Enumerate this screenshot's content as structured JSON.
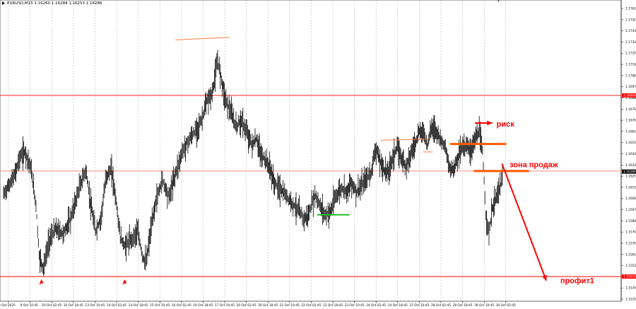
{
  "chart_data": {
    "type": "candlestick",
    "header": {
      "symbol_timeframe": "EURUSD,M15",
      "ohlc": "1.16260 1.16288 1.16253 1.16286"
    },
    "y_ticks": [
      "1.1761",
      "1.1752",
      "1.1743",
      "1.1734",
      "1.1725",
      "1.1716",
      "1.1706",
      "1.1697",
      "1.1688",
      "1.1679",
      "1.1670",
      "1.1661",
      "1.1652",
      "1.1643",
      "1.1634",
      "1.1625",
      "1.1615",
      "1.1606",
      "1.1597",
      "1.1588",
      "1.1579",
      "1.1570",
      "1.1561",
      "1.1552",
      "1.1543",
      "1.1534",
      "1.1525"
    ],
    "ylim": [
      1.1525,
      1.1761
    ],
    "x_ticks": [
      "8 Oct 2025",
      "9 Oct 10:45",
      "10 Oct 02:45",
      "10 Oct 18:45",
      "13 Oct 10:45",
      "14 Oct 02:45",
      "14 Oct 18:45",
      "15 Oct 10:45",
      "16 Oct 02:45",
      "16 Oct 18:45",
      "17 Oct 10:45",
      "20 Oct 02:45",
      "20 Oct 18:45",
      "21 Oct 10:45",
      "22 Oct 02:45",
      "22 Oct 18:45",
      "23 Oct 10:45",
      "24 Oct 02:45",
      "24 Oct 18:45",
      "27 Oct 10:45",
      "28 Oct 02:45",
      "28 Oct 18:45",
      "29 Oct 10:45",
      "30 Oct 02:45"
    ],
    "price_tags": [
      {
        "label": "1.16904",
        "value": 1.16904,
        "color": "#ff0000"
      },
      {
        "label": "1.16286",
        "value": 1.16286,
        "color": "#000000"
      },
      {
        "label": "1.15433",
        "value": 1.15433,
        "color": "#ff0000"
      }
    ],
    "horizontal_levels": [
      {
        "value": 1.16904,
        "color": "#ff0000"
      },
      {
        "value": 1.1629,
        "color": "#ff8a8a"
      },
      {
        "value": 1.15433,
        "color": "#ff0000"
      }
    ],
    "path_points": [
      [
        0,
        1.161
      ],
      [
        1,
        1.1625
      ],
      [
        1.5,
        1.164
      ],
      [
        2,
        1.1645
      ],
      [
        2.5,
        1.1632
      ],
      [
        3,
        1.1602
      ],
      [
        3.3,
        1.156
      ],
      [
        3.7,
        1.155
      ],
      [
        4.2,
        1.1572
      ],
      [
        4.8,
        1.1582
      ],
      [
        5.5,
        1.1578
      ],
      [
        6.2,
        1.159
      ],
      [
        7,
        1.1615
      ],
      [
        7.6,
        1.163
      ],
      [
        8,
        1.1605
      ],
      [
        8.5,
        1.158
      ],
      [
        9,
        1.159
      ],
      [
        9.5,
        1.1625
      ],
      [
        10,
        1.163
      ],
      [
        10.4,
        1.1605
      ],
      [
        10.8,
        1.1575
      ],
      [
        11.2,
        1.1568
      ],
      [
        11.8,
        1.1573
      ],
      [
        12.4,
        1.158
      ],
      [
        12.9,
        1.1558
      ],
      [
        13.2,
        1.1555
      ],
      [
        13.6,
        1.158
      ],
      [
        14.1,
        1.1605
      ],
      [
        14.7,
        1.1622
      ],
      [
        15.3,
        1.1608
      ],
      [
        16,
        1.163
      ],
      [
        16.6,
        1.1646
      ],
      [
        17.2,
        1.1655
      ],
      [
        17.8,
        1.1662
      ],
      [
        18.3,
        1.167
      ],
      [
        18.8,
        1.1685
      ],
      [
        19.3,
        1.1692
      ],
      [
        19.8,
        1.1718
      ],
      [
        20.1,
        1.1707
      ],
      [
        20.5,
        1.1688
      ],
      [
        21,
        1.1677
      ],
      [
        21.5,
        1.1665
      ],
      [
        22,
        1.167
      ],
      [
        22.5,
        1.166
      ],
      [
        23,
        1.165
      ],
      [
        23.4,
        1.1655
      ],
      [
        23.8,
        1.1642
      ],
      [
        24.2,
        1.1638
      ],
      [
        24.6,
        1.1632
      ],
      [
        25,
        1.162
      ],
      [
        25.5,
        1.1615
      ],
      [
        26,
        1.161
      ],
      [
        26.5,
        1.1605
      ],
      [
        27.2,
        1.1598
      ],
      [
        27.8,
        1.159
      ],
      [
        28.2,
        1.1593
      ],
      [
        28.8,
        1.161
      ],
      [
        29.3,
        1.16
      ],
      [
        29.8,
        1.1593
      ],
      [
        30.3,
        1.1597
      ],
      [
        30.8,
        1.161
      ],
      [
        31.3,
        1.1615
      ],
      [
        31.8,
        1.1613
      ],
      [
        32.2,
        1.162
      ],
      [
        32.6,
        1.1612
      ],
      [
        33,
        1.1615
      ],
      [
        33.5,
        1.1622
      ],
      [
        34,
        1.1628
      ],
      [
        34.4,
        1.1648
      ],
      [
        34.8,
        1.1637
      ],
      [
        35.2,
        1.163
      ],
      [
        35.6,
        1.1628
      ],
      [
        36,
        1.164
      ],
      [
        36.4,
        1.1648
      ],
      [
        36.8,
        1.164
      ],
      [
        37.2,
        1.1633
      ],
      [
        37.6,
        1.1642
      ],
      [
        38,
        1.165
      ],
      [
        38.4,
        1.166
      ],
      [
        38.8,
        1.1662
      ],
      [
        39.2,
        1.165
      ],
      [
        39.6,
        1.1665
      ],
      [
        40,
        1.1662
      ],
      [
        40.4,
        1.1655
      ],
      [
        40.8,
        1.165
      ],
      [
        41.2,
        1.1632
      ],
      [
        41.6,
        1.163
      ],
      [
        42,
        1.164
      ],
      [
        42.4,
        1.1648
      ],
      [
        42.8,
        1.165
      ],
      [
        43.2,
        1.1645
      ],
      [
        43.6,
        1.1655
      ],
      [
        44,
        1.166
      ],
      [
        44.3,
        1.1645
      ],
      [
        44.6,
        1.1595
      ],
      [
        44.9,
        1.1578
      ],
      [
        45.2,
        1.1598
      ],
      [
        45.6,
        1.1608
      ],
      [
        46,
        1.1618
      ],
      [
        46.2,
        1.1625
      ]
    ],
    "annotations": [
      {
        "kind": "segment",
        "color": "#ff7f3f",
        "width": 1,
        "from": [
          15.9,
          1.17355
        ],
        "to": [
          20.9,
          1.17375
        ]
      },
      {
        "kind": "segment",
        "color": "#ff7f3f",
        "width": 1,
        "from": [
          34.9,
          1.1654
        ],
        "to": [
          39.2,
          1.1655
        ]
      },
      {
        "kind": "segment",
        "color": "#ff7f3f",
        "width": 1,
        "from": [
          38.8,
          1.16445
        ],
        "to": [
          39.7,
          1.16445
        ]
      },
      {
        "kind": "segment",
        "color": "#ff5a00",
        "width": 3,
        "from": [
          41.3,
          1.1651
        ],
        "to": [
          46.5,
          1.1651
        ]
      },
      {
        "kind": "segment",
        "color": "#ff5a00",
        "width": 3,
        "from": [
          43.5,
          1.1629
        ],
        "to": [
          48.6,
          1.1629
        ]
      },
      {
        "kind": "segment",
        "color": "#22c022",
        "width": 2,
        "from": [
          29.0,
          1.15935
        ],
        "to": [
          32.0,
          1.15935
        ]
      },
      {
        "kind": "arrow",
        "color": "#ff0000",
        "width": 2,
        "from": [
          46.1,
          1.1635
        ],
        "to": [
          50.2,
          1.154
        ]
      },
      {
        "kind": "arrow",
        "color": "#ff0000",
        "width": 2,
        "from": [
          43.6,
          1.1668
        ],
        "to": [
          45.2,
          1.1668
        ]
      },
      {
        "kind": "arrowhead-up",
        "color": "#ff0000",
        "at": [
          3.5,
          1.1541
        ]
      },
      {
        "kind": "arrowhead-up",
        "color": "#ff0000",
        "at": [
          11.2,
          1.1541
        ]
      }
    ],
    "text_annotations": [
      {
        "text": "риск",
        "color": "#ff0000",
        "at": [
          45.6,
          1.1665
        ]
      },
      {
        "text": "зона продаж",
        "color": "#ff0000",
        "at": [
          46.8,
          1.1632
        ]
      },
      {
        "text": "профит1",
        "color": "#ff0000",
        "at": [
          51.5,
          1.1538
        ]
      }
    ],
    "grid": true
  }
}
